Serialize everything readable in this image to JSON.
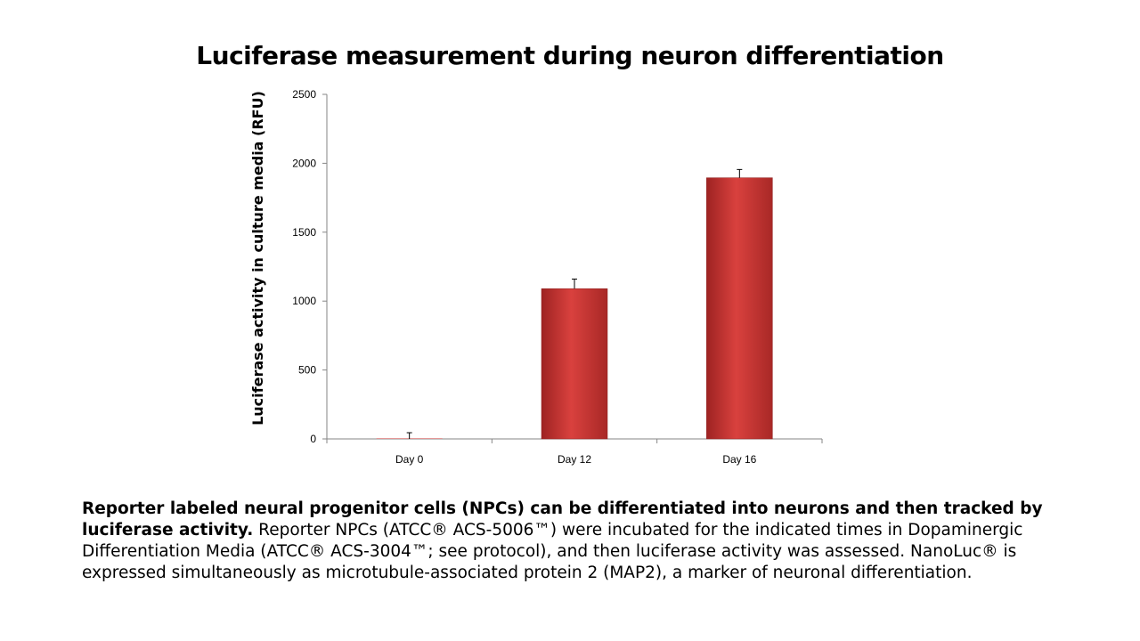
{
  "chart_data": {
    "type": "bar",
    "title": "Luciferase measurement during neuron differentiation",
    "xlabel": "",
    "ylabel": "Luciferase activity in culture media (RFU)",
    "categories": [
      "Day 0",
      "Day 12",
      "Day 16"
    ],
    "values": [
      0,
      1090,
      1895
    ],
    "error": [
      45,
      70,
      60
    ],
    "ylim": [
      0,
      2500
    ],
    "yticks": [
      0,
      500,
      1000,
      1500,
      2000,
      2500
    ],
    "grid": false,
    "legend": "none",
    "bar_color": "#c8312f"
  },
  "caption": {
    "lead": "Reporter labeled neural progenitor cells (NPCs) can be differentiated into neurons and then tracked by luciferase activity.",
    "body": " Reporter NPCs (ATCC® ACS-5006™) were incubated for the indicated times in Dopaminergic Differentiation Media (ATCC® ACS-3004™; see protocol), and then luciferase activity was assessed. NanoLuc® is expressed simultaneously as microtubule-associated protein 2 (MAP2), a marker of neuronal differentiation."
  }
}
